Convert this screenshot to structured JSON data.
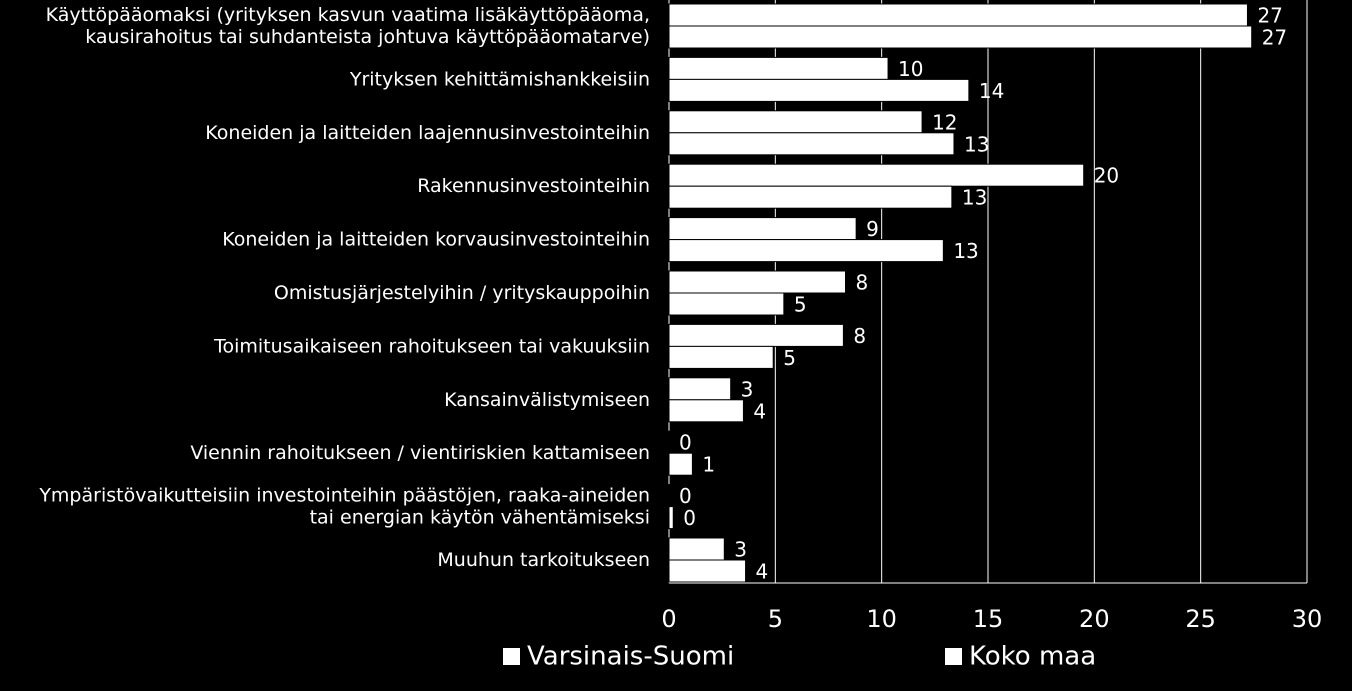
{
  "chart_data": {
    "type": "bar",
    "orientation": "horizontal",
    "categories": [
      "Käyttöpääomaksi (yrityksen kasvun vaatima lisäkäyttöpääoma, kausirahoitus tai suhdanteista johtuva käyttöpääomatarve)",
      "Yrityksen kehittämishankkeisiin",
      "Koneiden ja laitteiden laajennusinvestointeihin",
      "Rakennusinvestointeihin",
      "Koneiden ja laitteiden korvausinvestointeihin",
      "Omistusjärjestelyihin / yrityskauppoihin",
      "Toimitusaikaiseen rahoitukseen tai vakuuksiin",
      "Kansainvälistymiseen",
      "Viennin rahoitukseen / vientiriskien kattamiseen",
      "Ympäristövaikutteisiin investointeihin päästöjen, raaka-aineiden tai energian käytön vähentämiseksi",
      "Muuhun tarkoitukseen"
    ],
    "category_lines": [
      [
        "Käyttöpääomaksi (yrityksen kasvun vaatima lisäkäyttöpääoma,",
        "kausirahoitus tai suhdanteista johtuva käyttöpääomatarve)"
      ],
      [
        "Yrityksen kehittämishankkeisiin"
      ],
      [
        "Koneiden ja laitteiden laajennusinvestointeihin"
      ],
      [
        "Rakennusinvestointeihin"
      ],
      [
        "Koneiden ja laitteiden korvausinvestointeihin"
      ],
      [
        "Omistusjärjestelyihin / yrityskauppoihin"
      ],
      [
        "Toimitusaikaiseen rahoitukseen tai vakuuksiin"
      ],
      [
        "Kansainvälistymiseen"
      ],
      [
        "Viennin rahoitukseen / vientiriskien kattamiseen"
      ],
      [
        "Ympäristövaikutteisiin investointeihin päästöjen, raaka-aineiden",
        "tai energian käytön vähentämiseksi"
      ],
      [
        "Muuhun tarkoitukseen"
      ]
    ],
    "series": [
      {
        "name": "Varsinais-Suomi",
        "values": [
          27.2,
          10.3,
          11.9,
          19.5,
          8.8,
          8.3,
          8.2,
          2.9,
          0.0,
          0.0,
          2.6
        ],
        "labels": [
          "27",
          "10",
          "12",
          "20",
          "9",
          "8",
          "8",
          "3",
          "0",
          "0",
          "3"
        ]
      },
      {
        "name": "Koko maa",
        "values": [
          27.4,
          14.1,
          13.4,
          13.3,
          12.9,
          5.4,
          4.9,
          3.5,
          1.1,
          0.2,
          3.6
        ],
        "labels": [
          "27",
          "14",
          "13",
          "13",
          "13",
          "5",
          "5",
          "4",
          "1",
          "0",
          "4"
        ]
      }
    ],
    "xlim": [
      0,
      30
    ],
    "xticks": [
      0,
      5,
      10,
      15,
      20,
      25,
      30
    ],
    "grid": true,
    "legend_position": "bottom",
    "colors": {
      "background": "#000000",
      "bar": "#ffffff",
      "bar_outline": "#000000",
      "text": "#ffffff",
      "grid": "#ffffff"
    }
  }
}
